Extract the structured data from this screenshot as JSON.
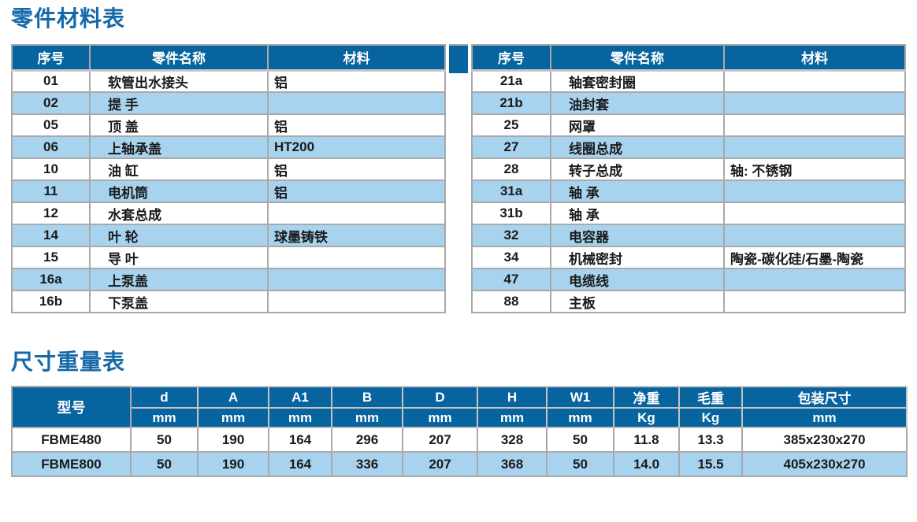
{
  "page": {
    "parts_title": "零件材料表",
    "dimensions_title": "尺寸重量表"
  },
  "colors": {
    "header_blue": "#07649e",
    "stripe_blue": "#a8d3ee",
    "title_blue": "#1569a8",
    "border_grey": "#a9a9a9"
  },
  "parts_table": {
    "headers": [
      "序号",
      "零件名称",
      "材料"
    ],
    "left_rows": [
      {
        "no": "01",
        "name": "软管出水接头",
        "material": "铝"
      },
      {
        "no": "02",
        "name": "提 手",
        "material": ""
      },
      {
        "no": "05",
        "name": "顶 盖",
        "material": "铝"
      },
      {
        "no": "06",
        "name": "上轴承盖",
        "material": "HT200"
      },
      {
        "no": "10",
        "name": "油 缸",
        "material": "铝"
      },
      {
        "no": "11",
        "name": "电机筒",
        "material": "铝"
      },
      {
        "no": "12",
        "name": "水套总成",
        "material": ""
      },
      {
        "no": "14",
        "name": "叶 轮",
        "material": "球墨铸铁"
      },
      {
        "no": "15",
        "name": "导 叶",
        "material": ""
      },
      {
        "no": "16a",
        "name": "上泵盖",
        "material": ""
      },
      {
        "no": "16b",
        "name": "下泵盖",
        "material": ""
      }
    ],
    "right_rows": [
      {
        "no": "21a",
        "name": "轴套密封圈",
        "material": ""
      },
      {
        "no": "21b",
        "name": "油封套",
        "material": ""
      },
      {
        "no": "25",
        "name": "网罩",
        "material": ""
      },
      {
        "no": "27",
        "name": "线圈总成",
        "material": ""
      },
      {
        "no": "28",
        "name": "转子总成",
        "material": "轴: 不锈钢"
      },
      {
        "no": "31a",
        "name": "轴 承",
        "material": ""
      },
      {
        "no": "31b",
        "name": "轴 承",
        "material": ""
      },
      {
        "no": "32",
        "name": "电容器",
        "material": ""
      },
      {
        "no": "34",
        "name": "机械密封",
        "material": "陶瓷-碳化硅/石墨-陶瓷"
      },
      {
        "no": "47",
        "name": "电缆线",
        "material": ""
      },
      {
        "no": "88",
        "name": "主板",
        "material": ""
      }
    ]
  },
  "dimensions_table": {
    "model_header": "型号",
    "columns": [
      {
        "label": "d",
        "unit": "mm"
      },
      {
        "label": "A",
        "unit": "mm"
      },
      {
        "label": "A1",
        "unit": "mm"
      },
      {
        "label": "B",
        "unit": "mm"
      },
      {
        "label": "D",
        "unit": "mm"
      },
      {
        "label": "H",
        "unit": "mm"
      },
      {
        "label": "W1",
        "unit": "mm"
      },
      {
        "label": "净重",
        "unit": "Kg"
      },
      {
        "label": "毛重",
        "unit": "Kg"
      },
      {
        "label": "包装尺寸",
        "unit": "mm"
      }
    ],
    "rows": [
      {
        "model": "FBME480",
        "values": [
          "50",
          "190",
          "164",
          "296",
          "207",
          "328",
          "50",
          "11.8",
          "13.3",
          "385x230x270"
        ]
      },
      {
        "model": "FBME800",
        "values": [
          "50",
          "190",
          "164",
          "336",
          "207",
          "368",
          "50",
          "14.0",
          "15.5",
          "405x230x270"
        ]
      }
    ]
  }
}
